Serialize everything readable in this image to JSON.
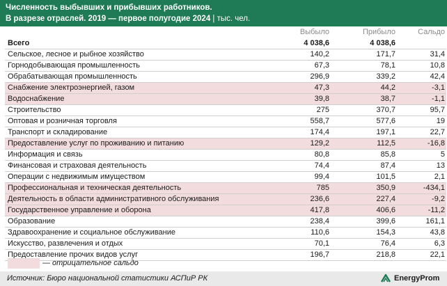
{
  "header": {
    "title": "Численность выбывших и прибывших работников.",
    "subtitle_bold": "В разрезе отраслей. 2019 — первое полугодие 2024",
    "subtitle_sep": " | ",
    "subtitle_unit": "тыс. чел."
  },
  "columns": [
    "Выбыло",
    "Прибыло",
    "Сальдо"
  ],
  "colors": {
    "header_bg": "#1f7a56",
    "negative_row": "#f2dcde",
    "footer_bg": "#e9e9e9",
    "logo_green": "#1f7a56"
  },
  "chart_data": {
    "type": "table",
    "title": "Численность выбывших и прибывших работников.",
    "subtitle": "В разрезе отраслей. 2019 — первое полугодие 2024 | тыс. чел.",
    "columns": [
      "Выбыло",
      "Прибыло",
      "Сальдо"
    ],
    "rows": [
      {
        "name": "Всего",
        "out": "4 038,6",
        "in": "4 038,6",
        "balance": "",
        "negative": false
      },
      {
        "name": "Сельское, лесное и рыбное хозяйство",
        "out": "140,2",
        "in": "171,7",
        "balance": "31,4",
        "negative": false
      },
      {
        "name": "Горнодобывающая промышленность",
        "out": "67,3",
        "in": "78,1",
        "balance": "10,8",
        "negative": false
      },
      {
        "name": "Обрабатывающая промышленность",
        "out": "296,9",
        "in": "339,2",
        "balance": "42,4",
        "negative": false
      },
      {
        "name": "Снабжение электроэнергией, газом",
        "out": "47,3",
        "in": "44,2",
        "balance": "-3,1",
        "negative": true
      },
      {
        "name": "Водоснабжение",
        "out": "39,8",
        "in": "38,7",
        "balance": "-1,1",
        "negative": true
      },
      {
        "name": "Строительство",
        "out": "275",
        "in": "370,7",
        "balance": "95,7",
        "negative": false
      },
      {
        "name": "Оптовая и розничная торговля",
        "out": "558,7",
        "in": "577,6",
        "balance": "19",
        "negative": false
      },
      {
        "name": "Транспорт и складирование",
        "out": "174,4",
        "in": "197,1",
        "balance": "22,7",
        "negative": false
      },
      {
        "name": "Предоставление услуг по проживанию и питанию",
        "out": "129,2",
        "in": "112,5",
        "balance": "-16,8",
        "negative": true
      },
      {
        "name": "Информация и связь",
        "out": "80,8",
        "in": "85,8",
        "balance": "5",
        "negative": false
      },
      {
        "name": "Финансовая и страховая деятельность",
        "out": "74,4",
        "in": "87,4",
        "balance": "13",
        "negative": false
      },
      {
        "name": "Операции с недвижимым имуществом",
        "out": "99,4",
        "in": "101,5",
        "balance": "2,1",
        "negative": false
      },
      {
        "name": "Профессиональная и техническая деятельность",
        "out": "785",
        "in": "350,9",
        "balance": "-434,1",
        "negative": true
      },
      {
        "name": "Деятельность в области административного обслуживания",
        "out": "236,6",
        "in": "227,4",
        "balance": "-9,2",
        "negative": true
      },
      {
        "name": "Государственное управление и оборона",
        "out": "417,8",
        "in": "406,6",
        "balance": "-11,2",
        "negative": true
      },
      {
        "name": "Образование",
        "out": "238,4",
        "in": "399,6",
        "balance": "161,1",
        "negative": false
      },
      {
        "name": "Здравоохранение и социальное обслуживание",
        "out": "110,6",
        "in": "154,3",
        "balance": "43,8",
        "negative": false
      },
      {
        "name": "Искусство, развлечения и отдых",
        "out": "70,1",
        "in": "76,4",
        "balance": "6,3",
        "negative": false
      },
      {
        "name": "Предоставление прочих видов услуг",
        "out": "196,7",
        "in": "218,8",
        "balance": "22,1",
        "negative": false
      }
    ]
  },
  "legend": {
    "label": "— отрицательное сальдо"
  },
  "footer": {
    "source": "Источник: Бюро национальной статистики АСПиР РК",
    "brand": "EnergyProm",
    "logo_icon": "energyprom-logo-icon"
  }
}
